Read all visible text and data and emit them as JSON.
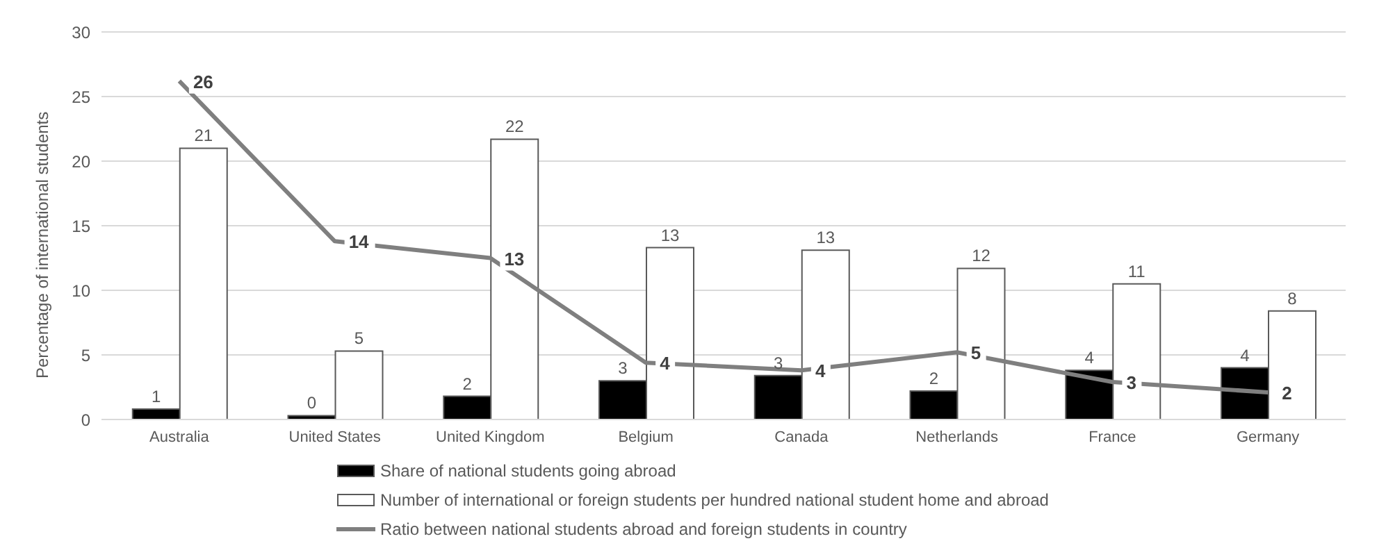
{
  "chart_data": {
    "type": "bar",
    "ylabel": "Percentage of international students",
    "categories": [
      "Australia",
      "United States",
      "United Kingdom",
      "Belgium",
      "Canada",
      "Netherlands",
      "France",
      "Germany"
    ],
    "series": [
      {
        "name": "Share of national students going abroad",
        "color": "#000000",
        "values": [
          0.8,
          0.3,
          1.8,
          3.0,
          3.4,
          2.2,
          3.8,
          4.0
        ],
        "value_labels": [
          "1",
          "0",
          "2",
          "3",
          "3",
          "2",
          "4",
          "4"
        ]
      },
      {
        "name": "Number of international or foreign students per hundred national student home and abroad",
        "color": "#ffffff",
        "values": [
          21.0,
          5.3,
          21.7,
          13.3,
          13.1,
          11.7,
          10.5,
          8.4
        ],
        "value_labels": [
          "21",
          "5",
          "22",
          "13",
          "13",
          "12",
          "11",
          "8"
        ]
      },
      {
        "name": "Ratio between national students abroad and foreign students in country",
        "type": "line",
        "color": "#7f7f7f",
        "values": [
          26.2,
          13.8,
          12.5,
          4.4,
          3.8,
          5.2,
          2.9,
          2.1
        ],
        "value_labels": [
          "26",
          "14",
          "13",
          "4",
          "4",
          "5",
          "3",
          "2"
        ]
      }
    ],
    "ylim": [
      0,
      30
    ],
    "yticks": [
      0,
      5,
      10,
      15,
      20,
      25,
      30
    ],
    "grid": "y",
    "legend": "bottom",
    "marker": "none",
    "line_style": "solid"
  }
}
